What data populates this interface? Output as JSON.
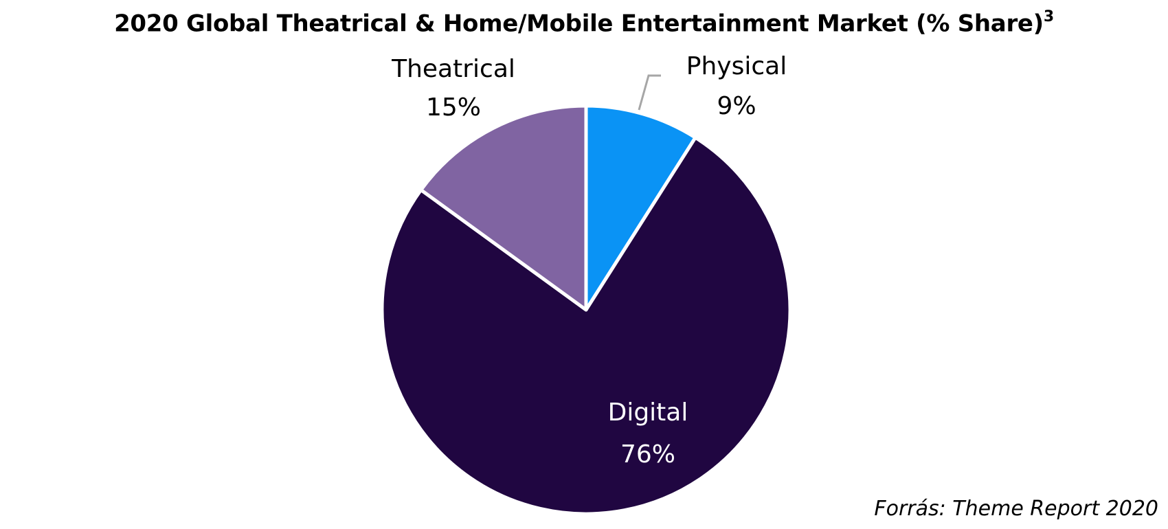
{
  "chart_data": {
    "type": "pie",
    "title": "2020 Global Theatrical & Home/Mobile Entertainment Market (% Share)",
    "title_footnote": "3",
    "slices": [
      {
        "name": "Physical",
        "value": 9,
        "label": "9%",
        "color": "#0a93f5"
      },
      {
        "name": "Digital",
        "value": 76,
        "label": "76%",
        "color": "#200641"
      },
      {
        "name": "Theatrical",
        "value": 15,
        "label": "15%",
        "color": "#8064a2"
      }
    ],
    "start": "12 o'clock, clockwise",
    "legend": "none"
  },
  "source": "Forrás: Theme Report 2020"
}
